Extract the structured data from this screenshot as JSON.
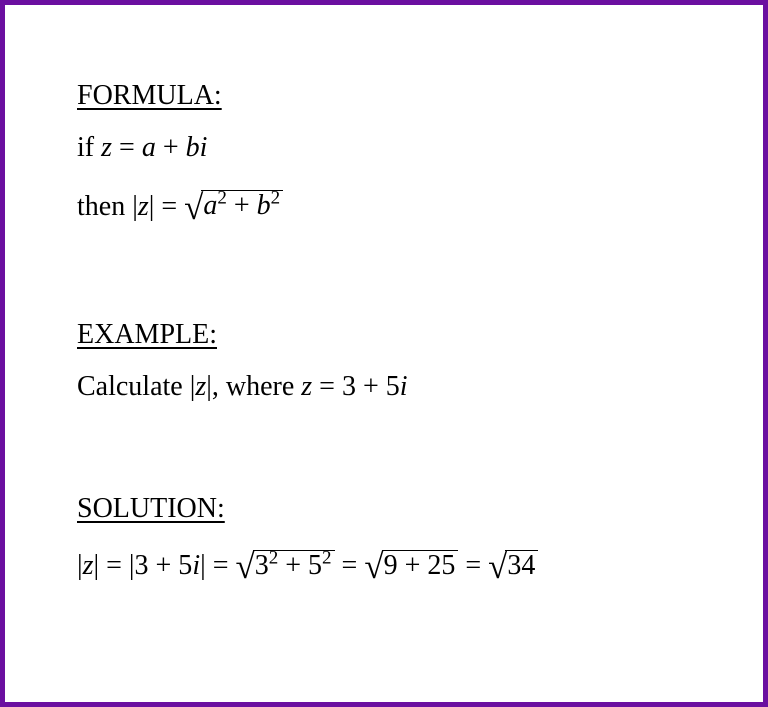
{
  "border_color": "#6b0fa0",
  "background_color": "#ffffff",
  "text_color": "#000000",
  "heading_fontsize": 28,
  "body_fontsize": 28,
  "formula": {
    "heading": "FORMULA:",
    "line1_prefix": "if ",
    "z": "z",
    "eq": " = ",
    "a": "a",
    "plus": " + ",
    "b": "b",
    "i": "i",
    "line2_prefix": "then |",
    "line2_mid": "| = ",
    "rad_a": "a",
    "sup2_a": "2",
    "rad_plus": " + ",
    "rad_b": "b",
    "sup2_b": "2"
  },
  "example": {
    "heading": "EXAMPLE:",
    "prefix": "Calculate |",
    "z": "z",
    "mid": "|, where ",
    "z2": "z",
    "eq": " = 3 + 5",
    "i": "i"
  },
  "solution": {
    "heading": "SOLUTION:",
    "p1": "|",
    "z": "z",
    "p2": "| = |3 + 5",
    "i": "i",
    "p3": "| = ",
    "rad1_a": "3",
    "rad1_supa": "2",
    "rad1_plus": " + 5",
    "rad1_supb": "2",
    "p4": " = ",
    "rad2": "9 + 25",
    "p5": " = ",
    "rad3": "34"
  }
}
